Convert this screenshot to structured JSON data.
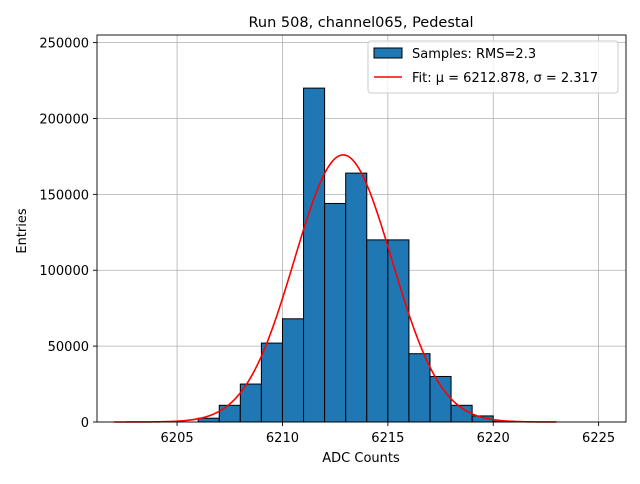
{
  "chart_data": {
    "type": "bar",
    "title": "Run 508, channel065, Pedestal",
    "xlabel": "ADC Counts",
    "ylabel": "Entries",
    "xlim": [
      6201.2,
      6226.3
    ],
    "ylim": [
      0,
      255000
    ],
    "grid": true,
    "legend_position": "top-right",
    "x_ticks": [
      6205,
      6210,
      6215,
      6220,
      6225
    ],
    "y_ticks": [
      0,
      50000,
      100000,
      150000,
      200000,
      250000
    ],
    "series": [
      {
        "name": "Samples: RMS=2.3",
        "kind": "histogram",
        "color": "#1f77b4",
        "edge_color": "#000000",
        "bin_edges": [
          6206,
          6207,
          6208,
          6209,
          6210,
          6211,
          6212,
          6213,
          6214,
          6215,
          6216,
          6217,
          6218,
          6219,
          6220,
          6221
        ],
        "values": [
          2500,
          11000,
          25000,
          52000,
          68000,
          220000,
          144000,
          164000,
          120000,
          120000,
          45000,
          30000,
          11000,
          4000,
          500
        ]
      },
      {
        "name": "Fit: μ = 6212.878, σ = 2.317",
        "kind": "gaussian",
        "color": "#ff0000",
        "mu": 6212.878,
        "sigma": 2.317,
        "amplitude": 176000,
        "x_range": [
          6202,
          6223
        ]
      }
    ],
    "legend": [
      {
        "label": "Samples: RMS=2.3",
        "swatch": "patch"
      },
      {
        "label": "Fit: μ = 6212.878, σ = 2.317",
        "swatch": "line"
      }
    ]
  }
}
